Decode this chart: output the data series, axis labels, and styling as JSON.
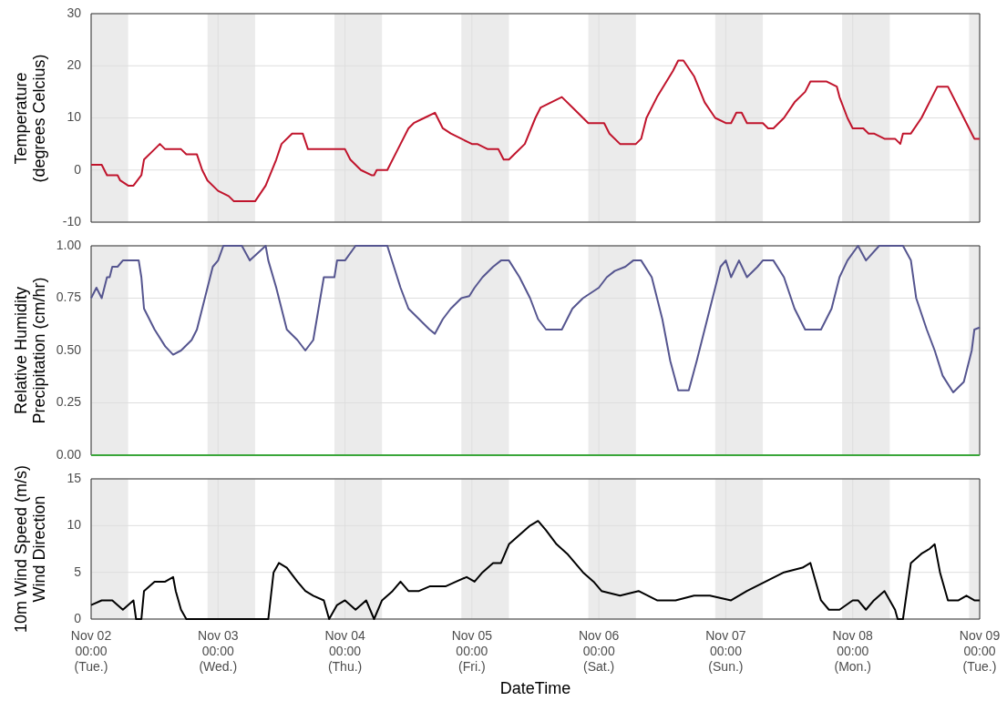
{
  "chart_data": [
    {
      "type": "line",
      "ylabel": "Temperature\n(degrees Celcius)",
      "xlim": [
        "--11-02T00:00",
        "--11-09T00:00"
      ],
      "ylim": [
        -10,
        30
      ],
      "yticks": [
        -10,
        0,
        10,
        20,
        30
      ],
      "xticks": [
        {
          "value": "--11-02T00:00",
          "label": null
        },
        {
          "value": "--11-03T00:00",
          "label": null
        },
        {
          "value": "--11-04T00:00",
          "label": null
        },
        {
          "value": "--11-05T00:00",
          "label": null
        },
        {
          "value": "--11-06T00:00",
          "label": null
        },
        {
          "value": "--11-07T00:00",
          "label": null
        },
        {
          "value": "--11-08T00:00",
          "label": null
        },
        {
          "value": "--11-09T00:00",
          "label": null
        }
      ],
      "tick_labels": "y",
      "grid": true,
      "legend": false,
      "marker": "none",
      "line_style": "solid",
      "bands": [
        {
          "axis": "x",
          "from": "--11-02T00:00",
          "to": "--11-02T07:00",
          "color": "#ebebeb"
        },
        {
          "axis": "x",
          "from": "--11-02T22:00",
          "to": "--11-03T07:00",
          "color": "#ebebeb"
        },
        {
          "axis": "x",
          "from": "--11-03T22:00",
          "to": "--11-04T07:00",
          "color": "#ebebeb"
        },
        {
          "axis": "x",
          "from": "--11-04T22:00",
          "to": "--11-05T07:00",
          "color": "#ebebeb"
        },
        {
          "axis": "x",
          "from": "--11-05T22:00",
          "to": "--11-06T07:00",
          "color": "#ebebeb"
        },
        {
          "axis": "x",
          "from": "--11-06T22:00",
          "to": "--11-07T07:00",
          "color": "#ebebeb"
        },
        {
          "axis": "x",
          "from": "--11-07T22:00",
          "to": "--11-08T07:00",
          "color": "#ebebeb"
        },
        {
          "axis": "x",
          "from": "--11-08T22:00",
          "to": "--11-09T00:00",
          "color": "#ebebeb"
        }
      ],
      "series": [
        {
          "color": "#c0142c",
          "x": [
            "--11-02T00:00",
            "--11-02T02:00",
            "--11-02T03:00",
            "--11-02T05:00",
            "--11-02T05:30",
            "--11-02T07:00",
            "--11-02T08:00",
            "--11-02T09:30",
            "--11-02T10:00",
            "--11-02T12:00",
            "--11-02T13:00",
            "--11-02T14:00",
            "--11-02T17:00",
            "--11-02T18:00",
            "--11-02T20:00",
            "--11-02T21:00",
            "--11-02T22:00",
            "--11-03T00:00",
            "--11-03T02:00",
            "--11-03T03:00",
            "--11-03T07:00",
            "--11-03T09:00",
            "--11-03T11:00",
            "--11-03T12:00",
            "--11-03T14:00",
            "--11-03T16:00",
            "--11-03T17:00",
            "--11-04T00:00",
            "--11-04T01:00",
            "--11-04T03:00",
            "--11-04T05:00",
            "--11-04T05:30",
            "--11-04T06:00",
            "--11-04T08:00",
            "--11-04T10:00",
            "--11-04T12:00",
            "--11-04T13:00",
            "--11-04T15:00",
            "--11-04T17:00",
            "--11-04T18:00",
            "--11-04T18:30",
            "--11-04T20:00",
            "--11-04T22:00",
            "--11-05T00:00",
            "--11-05T01:00",
            "--11-05T03:00",
            "--11-05T05:00",
            "--11-05T06:00",
            "--11-05T07:00",
            "--11-05T08:00",
            "--11-05T10:00",
            "--11-05T12:00",
            "--11-05T13:00",
            "--11-05T15:00",
            "--11-05T17:00",
            "--11-05T19:00",
            "--11-05T20:00",
            "--11-05T22:00",
            "--11-06T01:00",
            "--11-06T02:00",
            "--11-06T04:00",
            "--11-06T07:00",
            "--11-06T08:00",
            "--11-06T09:00",
            "--11-06T11:00",
            "--11-06T14:00",
            "--11-06T15:00",
            "--11-06T16:00",
            "--11-06T18:00",
            "--11-06T20:00",
            "--11-06T22:00",
            "--11-07T00:00",
            "--11-07T01:00",
            "--11-07T02:00",
            "--11-07T03:00",
            "--11-07T04:00",
            "--11-07T07:00",
            "--11-07T08:00",
            "--11-07T09:00",
            "--11-07T11:00",
            "--11-07T13:00",
            "--11-07T15:00",
            "--11-07T16:00",
            "--11-07T19:00",
            "--11-07T21:00",
            "--11-07T21:30",
            "--11-07T23:00",
            "--11-08T00:00",
            "--11-08T02:00",
            "--11-08T03:00",
            "--11-08T04:00",
            "--11-08T06:00",
            "--11-08T08:00",
            "--11-08T09:00",
            "--11-08T09:30",
            "--11-08T11:00",
            "--11-08T13:00",
            "--11-08T15:00",
            "--11-08T16:00",
            "--11-08T18:00",
            "--11-08T20:00",
            "--11-08T22:00",
            "--11-08T22:30",
            "--11-08T23:00",
            "--11-09T00:00"
          ],
          "values": [
            1,
            1,
            -1,
            -1,
            -2,
            -3,
            -3,
            -1,
            2,
            4,
            5,
            4,
            4,
            3,
            3,
            0,
            -2,
            -4,
            -5,
            -6,
            -6,
            -3,
            2,
            5,
            7,
            7,
            4,
            4,
            2,
            0,
            -1,
            -1,
            0,
            0,
            4,
            8,
            9,
            10,
            11,
            9,
            8,
            7,
            6,
            5,
            5,
            4,
            4,
            2,
            2,
            3,
            5,
            10,
            12,
            13,
            14,
            12,
            11,
            9,
            9,
            7,
            5,
            5,
            6,
            10,
            14,
            19,
            21,
            21,
            18,
            13,
            10,
            9,
            9,
            11,
            11,
            9,
            9,
            8,
            8,
            10,
            13,
            15,
            17,
            17,
            16,
            14,
            10,
            8,
            8,
            7,
            7,
            6,
            6,
            5,
            7,
            7,
            10,
            14,
            16,
            16,
            12,
            8,
            7,
            6,
            6
          ]
        }
      ]
    },
    {
      "type": "line",
      "ylabel": "Relative Humidity\nPrecipitation (cm/hr)",
      "xlim": [
        "--11-02T00:00",
        "--11-09T00:00"
      ],
      "ylim": [
        0,
        1
      ],
      "yticks": [
        {
          "value": 0,
          "label": "0.00"
        },
        {
          "value": 0.25,
          "label": "0.25"
        },
        {
          "value": 0.5,
          "label": "0.50"
        },
        {
          "value": 0.75,
          "label": "0.75"
        },
        {
          "value": 1,
          "label": "1.00"
        }
      ],
      "xticks": [
        {
          "value": "--11-02T00:00",
          "label": null
        },
        {
          "value": "--11-03T00:00",
          "label": null
        },
        {
          "value": "--11-04T00:00",
          "label": null
        },
        {
          "value": "--11-05T00:00",
          "label": null
        },
        {
          "value": "--11-06T00:00",
          "label": null
        },
        {
          "value": "--11-07T00:00",
          "label": null
        },
        {
          "value": "--11-08T00:00",
          "label": null
        },
        {
          "value": "--11-09T00:00",
          "label": null
        }
      ],
      "tick_labels": "y",
      "grid": true,
      "legend": false,
      "marker": "none",
      "line_style": "solid",
      "bands": [
        {
          "axis": "x",
          "from": "--11-02T00:00",
          "to": "--11-02T07:00",
          "color": "#ebebeb"
        },
        {
          "axis": "x",
          "from": "--11-02T22:00",
          "to": "--11-03T07:00",
          "color": "#ebebeb"
        },
        {
          "axis": "x",
          "from": "--11-03T22:00",
          "to": "--11-04T07:00",
          "color": "#ebebeb"
        },
        {
          "axis": "x",
          "from": "--11-04T22:00",
          "to": "--11-05T07:00",
          "color": "#ebebeb"
        },
        {
          "axis": "x",
          "from": "--11-05T22:00",
          "to": "--11-06T07:00",
          "color": "#ebebeb"
        },
        {
          "axis": "x",
          "from": "--11-06T22:00",
          "to": "--11-07T07:00",
          "color": "#ebebeb"
        },
        {
          "axis": "x",
          "from": "--11-07T22:00",
          "to": "--11-08T07:00",
          "color": "#ebebeb"
        },
        {
          "axis": "x",
          "from": "--11-08T22:00",
          "to": "--11-09T00:00",
          "color": "#ebebeb"
        }
      ],
      "series": [
        {
          "color": "#55558f",
          "x": [
            "--11-02T00:00",
            "--11-02T01:00",
            "--11-02T02:00",
            "--11-02T03:00",
            "--11-02T03:30",
            "--11-02T04:00",
            "--11-02T05:00",
            "--11-02T06:00",
            "--11-02T09:00",
            "--11-02T09:30",
            "--11-02T10:00",
            "--11-02T12:00",
            "--11-02T14:00",
            "--11-02T15:30",
            "--11-02T17:00",
            "--11-02T19:00",
            "--11-02T20:00",
            "--11-02T21:00",
            "--11-02T22:30",
            "--11-02T23:00",
            "--11-03T00:00",
            "--11-03T01:00",
            "--11-03T04:30",
            "--11-03T06:00",
            "--11-03T09:00",
            "--11-03T09:30",
            "--11-03T11:00",
            "--11-03T13:00",
            "--11-03T15:00",
            "--11-03T16:30",
            "--11-03T18:00",
            "--11-03T19:00",
            "--11-03T20:00",
            "--11-03T22:00",
            "--11-03T22:30",
            "--11-04T00:00",
            "--11-04T02:00",
            "--11-04T05:30",
            "--11-04T08:00",
            "--11-04T10:30",
            "--11-04T12:00",
            "--11-04T14:00",
            "--11-04T16:00",
            "--11-04T17:00",
            "--11-04T18:30",
            "--11-04T20:00",
            "--11-04T22:00",
            "--11-04T23:30",
            "--11-05T00:30",
            "--11-05T02:00",
            "--11-05T04:00",
            "--11-05T05:30",
            "--11-05T07:00",
            "--11-05T09:00",
            "--11-05T11:00",
            "--11-05T12:30",
            "--11-05T14:00",
            "--11-05T17:00",
            "--11-05T19:00",
            "--11-05T21:00",
            "--11-06T00:00",
            "--11-06T01:30",
            "--11-06T03:00",
            "--11-06T05:00",
            "--11-06T06:30",
            "--11-06T08:00",
            "--11-06T10:00",
            "--11-06T12:00",
            "--11-06T13:30",
            "--11-06T15:00",
            "--11-06T17:00",
            "--11-06T18:30",
            "--11-06T20:00",
            "--11-06T22:00",
            "--11-06T23:00",
            "--11-07T00:00",
            "--11-07T01:00",
            "--11-07T02:30",
            "--11-07T04:00",
            "--11-07T06:00",
            "--11-07T07:00",
            "--11-07T09:00",
            "--11-07T11:00",
            "--11-07T13:00",
            "--11-07T15:00",
            "--11-07T18:00",
            "--11-07T20:00",
            "--11-07T21:30",
            "--11-07T23:00",
            "--11-08T01:00",
            "--11-08T02:30",
            "--11-08T05:00",
            "--11-08T09:30",
            "--11-08T11:00",
            "--11-08T12:00",
            "--11-08T14:00",
            "--11-08T15:30",
            "--11-08T17:00",
            "--11-08T19:00",
            "--11-08T21:00",
            "--11-08T22:30",
            "--11-08T23:00",
            "--11-09T00:00"
          ],
          "values": [
            0.75,
            0.8,
            0.75,
            0.85,
            0.85,
            0.9,
            0.9,
            0.93,
            0.93,
            0.85,
            0.7,
            0.6,
            0.52,
            0.48,
            0.5,
            0.55,
            0.6,
            0.7,
            0.85,
            0.9,
            0.93,
            1,
            1,
            0.93,
            1,
            0.93,
            0.8,
            0.6,
            0.55,
            0.5,
            0.55,
            0.7,
            0.85,
            0.85,
            0.93,
            0.93,
            1,
            1,
            1,
            0.8,
            0.7,
            0.65,
            0.6,
            0.58,
            0.65,
            0.7,
            0.75,
            0.76,
            0.8,
            0.85,
            0.9,
            0.93,
            0.93,
            0.85,
            0.75,
            0.65,
            0.6,
            0.6,
            0.7,
            0.75,
            0.8,
            0.85,
            0.88,
            0.9,
            0.93,
            0.93,
            0.85,
            0.65,
            0.45,
            0.31,
            0.31,
            0.45,
            0.6,
            0.8,
            0.9,
            0.93,
            0.85,
            0.93,
            0.85,
            0.9,
            0.93,
            0.93,
            0.85,
            0.7,
            0.6,
            0.6,
            0.7,
            0.85,
            0.93,
            1,
            0.93,
            1,
            1,
            0.93,
            0.75,
            0.6,
            0.5,
            0.38,
            0.3,
            0.35,
            0.5,
            0.6,
            0.61
          ]
        },
        {
          "color": "#3aa63a",
          "x": [
            "--11-02T00:00",
            "--11-09T00:00"
          ],
          "values": [
            0,
            0
          ]
        }
      ]
    },
    {
      "type": "line",
      "ylabel": "10m Wind Speed (m/s)\nWind Direction",
      "xlabel": "DateTime",
      "xlim": [
        "--11-02T00:00",
        "--11-09T00:00"
      ],
      "ylim": [
        0,
        15
      ],
      "yticks": [
        0,
        5,
        10,
        15
      ],
      "xticks": [
        {
          "value": "--11-02T00:00",
          "label": "Nov 02\n00:00\n(Tue.)"
        },
        {
          "value": "--11-03T00:00",
          "label": "Nov 03\n00:00\n(Wed.)"
        },
        {
          "value": "--11-04T00:00",
          "label": "Nov 04\n00:00\n(Thu.)"
        },
        {
          "value": "--11-05T00:00",
          "label": "Nov 05\n00:00\n(Fri.)"
        },
        {
          "value": "--11-06T00:00",
          "label": "Nov 06\n00:00\n(Sat.)"
        },
        {
          "value": "--11-07T00:00",
          "label": "Nov 07\n00:00\n(Sun.)"
        },
        {
          "value": "--11-08T00:00",
          "label": "Nov 08\n00:00\n(Mon.)"
        },
        {
          "value": "--11-09T00:00",
          "label": "Nov 09\n00:00\n(Tue.)"
        }
      ],
      "grid": true,
      "legend": false,
      "marker": "none",
      "line_style": "solid",
      "bands": [
        {
          "axis": "x",
          "from": "--11-02T00:00",
          "to": "--11-02T07:00",
          "color": "#ebebeb"
        },
        {
          "axis": "x",
          "from": "--11-02T22:00",
          "to": "--11-03T07:00",
          "color": "#ebebeb"
        },
        {
          "axis": "x",
          "from": "--11-03T22:00",
          "to": "--11-04T07:00",
          "color": "#ebebeb"
        },
        {
          "axis": "x",
          "from": "--11-04T22:00",
          "to": "--11-05T07:00",
          "color": "#ebebeb"
        },
        {
          "axis": "x",
          "from": "--11-05T22:00",
          "to": "--11-06T07:00",
          "color": "#ebebeb"
        },
        {
          "axis": "x",
          "from": "--11-06T22:00",
          "to": "--11-07T07:00",
          "color": "#ebebeb"
        },
        {
          "axis": "x",
          "from": "--11-07T22:00",
          "to": "--11-08T07:00",
          "color": "#ebebeb"
        },
        {
          "axis": "x",
          "from": "--11-08T22:00",
          "to": "--11-09T00:00",
          "color": "#ebebeb"
        }
      ],
      "series": [
        {
          "color": "#000000",
          "x": [
            "--11-02T00:00",
            "--11-02T02:00",
            "--11-02T04:00",
            "--11-02T06:00",
            "--11-02T08:00",
            "--11-02T08:30",
            "--11-02T09:30",
            "--11-02T10:00",
            "--11-02T12:00",
            "--11-02T14:00",
            "--11-02T15:30",
            "--11-02T16:00",
            "--11-02T17:00",
            "--11-02T18:00",
            "--11-03T07:00",
            "--11-03T09:30",
            "--11-03T10:30",
            "--11-03T11:30",
            "--11-03T13:00",
            "--11-03T15:00",
            "--11-03T16:30",
            "--11-03T18:00",
            "--11-03T20:00",
            "--11-03T21:00",
            "--11-03T22:30",
            "--11-04T00:00",
            "--11-04T02:00",
            "--11-04T04:00",
            "--11-04T05:30",
            "--11-04T07:00",
            "--11-04T09:00",
            "--11-04T10:30",
            "--11-04T12:00",
            "--11-04T14:00",
            "--11-04T16:00",
            "--11-04T17:30",
            "--11-04T19:00",
            "--11-04T21:00",
            "--11-04T23:00",
            "--11-05T00:30",
            "--11-05T02:00",
            "--11-05T04:00",
            "--11-05T05:30",
            "--11-05T07:00",
            "--11-05T09:00",
            "--11-05T11:00",
            "--11-05T12:30",
            "--11-05T14:00",
            "--11-05T16:00",
            "--11-05T18:00",
            "--11-05T19:30",
            "--11-05T21:00",
            "--11-05T23:00",
            "--11-06T00:30",
            "--11-06T04:00",
            "--11-06T07:30",
            "--11-06T11:00",
            "--11-06T14:30",
            "--11-06T18:00",
            "--11-06T21:00",
            "--11-07T01:00",
            "--11-07T04:00",
            "--11-07T07:30",
            "--11-07T11:00",
            "--11-07T14:30",
            "--11-07T16:00",
            "--11-07T17:00",
            "--11-07T18:00",
            "--11-07T19:30",
            "--11-07T21:30",
            "--11-08T00:00",
            "--11-08T01:00",
            "--11-08T02:30",
            "--11-08T04:00",
            "--11-08T06:00",
            "--11-08T08:00",
            "--11-08T08:30",
            "--11-08T09:30",
            "--11-08T10:30",
            "--11-08T11:00",
            "--11-08T13:00",
            "--11-08T14:30",
            "--11-08T15:30",
            "--11-08T16:30",
            "--11-08T18:00",
            "--11-08T20:00",
            "--11-08T21:30",
            "--11-08T23:00",
            "--11-09T00:00"
          ],
          "values": [
            1.5,
            2,
            2,
            1,
            2,
            0,
            0,
            3,
            4,
            4,
            4.5,
            3,
            1,
            0,
            0,
            0,
            5,
            6,
            5.5,
            4,
            3,
            2.5,
            2,
            0,
            1.5,
            2,
            1,
            2,
            0,
            2,
            3,
            4,
            3,
            3,
            3.5,
            3.5,
            3.5,
            4,
            4.5,
            4,
            5,
            6,
            6,
            8,
            9,
            10,
            10.5,
            9.5,
            8,
            7,
            6,
            5,
            4,
            3,
            2.5,
            3,
            2,
            2,
            2.5,
            2.5,
            2,
            3,
            4,
            5,
            5.5,
            6,
            4,
            2,
            1,
            1,
            2,
            2,
            1,
            2,
            3,
            1,
            0,
            0,
            4,
            6,
            7,
            7.5,
            8,
            5,
            2,
            2,
            2.5,
            2,
            2
          ]
        }
      ]
    }
  ]
}
